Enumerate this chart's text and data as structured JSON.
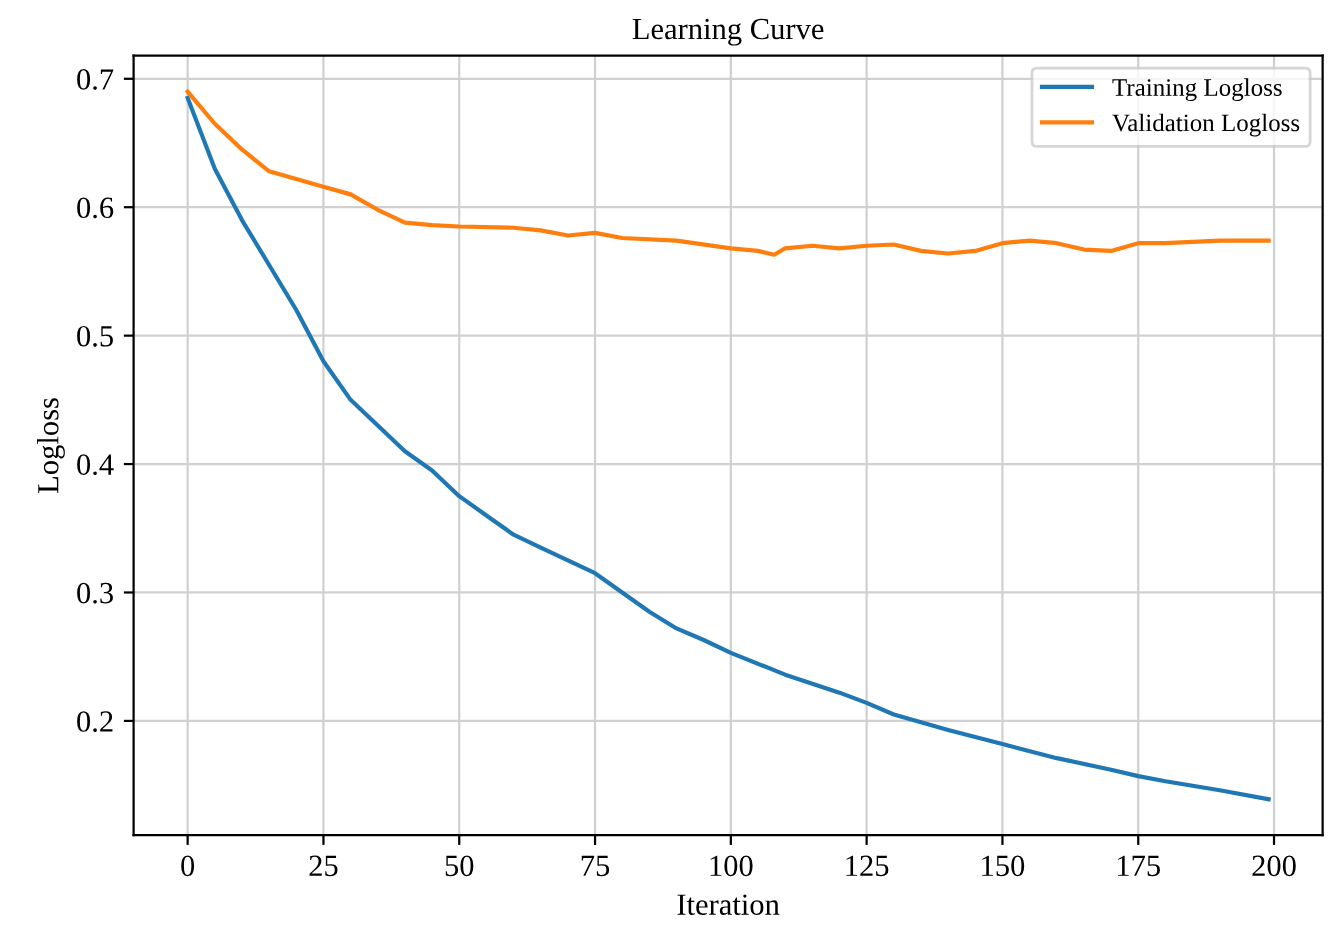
{
  "chart_data": {
    "type": "line",
    "title": "Learning Curve",
    "xlabel": "Iteration",
    "ylabel": "Logloss",
    "xlim": [
      -9.95,
      208.95
    ],
    "xticks": [
      0,
      25,
      50,
      75,
      100,
      125,
      150,
      175,
      200
    ],
    "ylim": [
      0.111,
      0.718
    ],
    "yticks": [
      0.2,
      0.3,
      0.4,
      0.5,
      0.6,
      0.7
    ],
    "grid": true,
    "legend": "top right",
    "line_style": "solid",
    "series": [
      {
        "name": "Training Logloss",
        "color": "#1f77b4",
        "x": [
          0,
          5,
          10,
          15,
          20,
          25,
          30,
          35,
          40,
          45,
          50,
          55,
          60,
          65,
          70,
          75,
          80,
          85,
          90,
          95,
          100,
          110,
          120,
          125,
          130,
          140,
          150,
          160,
          170,
          175,
          180,
          190,
          199
        ],
        "values": [
          0.685,
          0.63,
          0.59,
          0.555,
          0.52,
          0.48,
          0.45,
          0.43,
          0.41,
          0.395,
          0.375,
          0.36,
          0.345,
          0.335,
          0.325,
          0.315,
          0.3,
          0.285,
          0.272,
          0.263,
          0.253,
          0.236,
          0.222,
          0.214,
          0.205,
          0.193,
          0.182,
          0.171,
          0.162,
          0.157,
          0.153,
          0.146,
          0.139
        ]
      },
      {
        "name": "Validation Logloss",
        "color": "#ff7f0e",
        "x": [
          0,
          5,
          10,
          15,
          20,
          25,
          30,
          35,
          40,
          45,
          50,
          60,
          65,
          70,
          75,
          80,
          90,
          100,
          105,
          108,
          110,
          115,
          120,
          125,
          130,
          135,
          140,
          145,
          150,
          155,
          160,
          165,
          170,
          175,
          180,
          190,
          199
        ],
        "values": [
          0.69,
          0.665,
          0.645,
          0.628,
          0.622,
          0.616,
          0.61,
          0.598,
          0.588,
          0.586,
          0.585,
          0.584,
          0.582,
          0.578,
          0.58,
          0.576,
          0.574,
          0.568,
          0.566,
          0.563,
          0.568,
          0.57,
          0.568,
          0.57,
          0.571,
          0.566,
          0.564,
          0.566,
          0.572,
          0.574,
          0.572,
          0.567,
          0.566,
          0.572,
          0.572,
          0.574,
          0.574
        ]
      }
    ]
  }
}
